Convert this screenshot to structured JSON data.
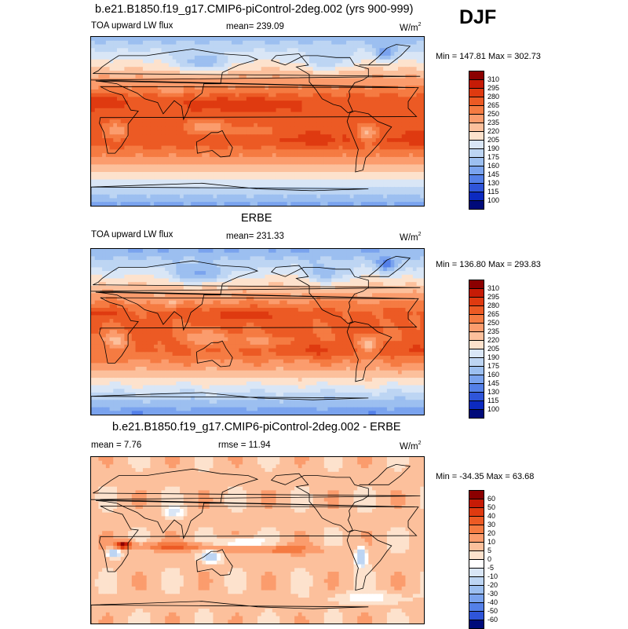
{
  "header": {
    "title": "b.e21.B1850.f19_g17.CMIP6-piControl-2deg.002 (yrs 900-999)",
    "season": "DJF"
  },
  "chart_data": [
    {
      "type": "heatmap",
      "title": "b.e21.B1850.f19_g17.CMIP6-piControl-2deg.002 (yrs 900-999)",
      "left_label": "TOA upward LW flux",
      "center_label": "mean= 239.09",
      "units": "W/m",
      "units_sup": "2",
      "minmax": "Min = 147.81 Max = 302.73",
      "scale": "abs",
      "levels": [
        "310",
        "295",
        "280",
        "265",
        "250",
        "235",
        "220",
        "205",
        "190",
        "175",
        "160",
        "145",
        "130",
        "115",
        "100"
      ],
      "colors": [
        "#8b0000",
        "#c61b06",
        "#df3a10",
        "#ec5a24",
        "#f57b42",
        "#fb9c6d",
        "#fcc09c",
        "#fde2cd",
        "#d9e6f6",
        "#bdd5f3",
        "#9cbff0",
        "#7aa3ee",
        "#5480e8",
        "#2f55d9",
        "#0c2ac0",
        "#000a7a"
      ]
    },
    {
      "type": "heatmap",
      "title": "ERBE",
      "left_label": "TOA upward LW flux",
      "center_label": "mean= 231.33",
      "units": "W/m",
      "units_sup": "2",
      "minmax": "Min = 136.80 Max = 293.83",
      "scale": "abs",
      "levels": [
        "310",
        "295",
        "280",
        "265",
        "250",
        "235",
        "220",
        "205",
        "190",
        "175",
        "160",
        "145",
        "130",
        "115",
        "100"
      ],
      "colors": [
        "#8b0000",
        "#c61b06",
        "#df3a10",
        "#ec5a24",
        "#f57b42",
        "#fb9c6d",
        "#fcc09c",
        "#fde2cd",
        "#d9e6f6",
        "#bdd5f3",
        "#9cbff0",
        "#7aa3ee",
        "#5480e8",
        "#2f55d9",
        "#0c2ac0",
        "#000a7a"
      ]
    },
    {
      "type": "heatmap",
      "title": "b.e21.B1850.f19_g17.CMIP6-piControl-2deg.002 - ERBE",
      "left_label": "mean =   7.76",
      "center_label": "rmse =  11.94",
      "units": "W/m",
      "units_sup": "2",
      "minmax": "Min = -34.35 Max =  63.68",
      "scale": "diff",
      "levels": [
        "60",
        "50",
        "40",
        "30",
        "20",
        "10",
        "5",
        "0",
        "-5",
        "-10",
        "-20",
        "-30",
        "-40",
        "-50",
        "-60"
      ],
      "colors": [
        "#8b0000",
        "#c61b06",
        "#df3a10",
        "#ec5a24",
        "#f57b42",
        "#fb9c6d",
        "#fcc09c",
        "#fde2cd",
        "#ffffff",
        "#d9e6f6",
        "#bdd5f3",
        "#9cbff0",
        "#7aa3ee",
        "#5480e8",
        "#2f55d9",
        "#000a7a"
      ]
    }
  ]
}
